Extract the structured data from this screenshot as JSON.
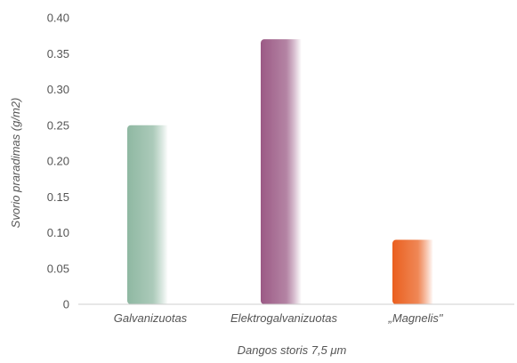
{
  "chart_data": {
    "type": "bar",
    "title": "",
    "xlabel": "Dangos storis 7,5 μm",
    "ylabel": "Svorio praradimas (g/m2)",
    "categories": [
      "Galvanizuotas",
      "Elektrogalvanizuotas",
      "„Magnelis\""
    ],
    "values": [
      0.25,
      0.37,
      0.09
    ],
    "ylim": [
      0,
      0.4
    ],
    "yticks": [
      0,
      0.05,
      0.1,
      0.15,
      0.2,
      0.25,
      0.3,
      0.35,
      0.4
    ],
    "ytick_labels": [
      "0",
      "0.05",
      "0.10",
      "0.15",
      "0.20",
      "0.25",
      "0.30",
      "0.35",
      "0.40"
    ],
    "grid": false,
    "legend": "none",
    "colors": [
      "#8fb8a2",
      "#9b5a85",
      "#ea5f1e"
    ]
  }
}
